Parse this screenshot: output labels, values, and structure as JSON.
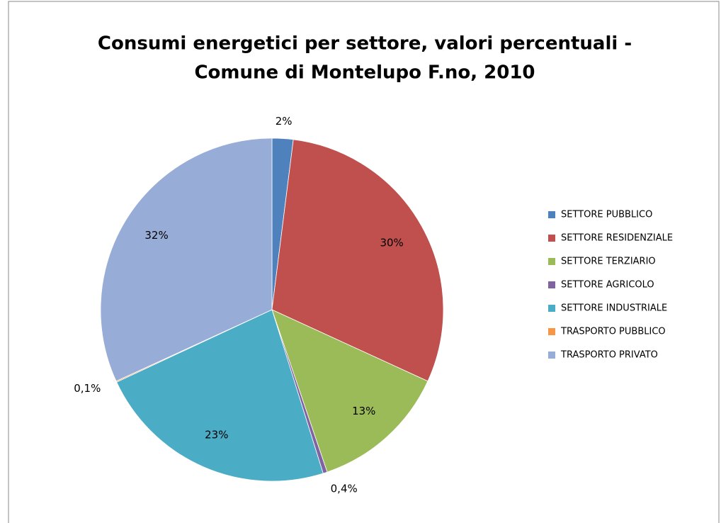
{
  "chart_data": {
    "type": "pie",
    "title": [
      "Consumi energetici per settore, valori percentuali -",
      "Comune di Montelupo F.no, 2010"
    ],
    "categories": [
      "SETTORE PUBBLICO",
      "SETTORE RESIDENZIALE",
      "SETTORE TERZIARIO",
      "SETTORE AGRICOLO",
      "SETTORE INDUSTRIALE",
      "TRASPORTO PUBBLICO",
      "TRASPORTO PRIVATO"
    ],
    "values": [
      2,
      30,
      13,
      0.4,
      23,
      0.1,
      32
    ],
    "value_labels": [
      "2%",
      "30%",
      "13%",
      "0,4%",
      "23%",
      "0,1%",
      "32%"
    ],
    "colors": [
      "#4f81bd",
      "#c0504d",
      "#9bbb59",
      "#8064a2",
      "#4bacc6",
      "#f79646",
      "#98acd8"
    ],
    "legend": "right"
  }
}
